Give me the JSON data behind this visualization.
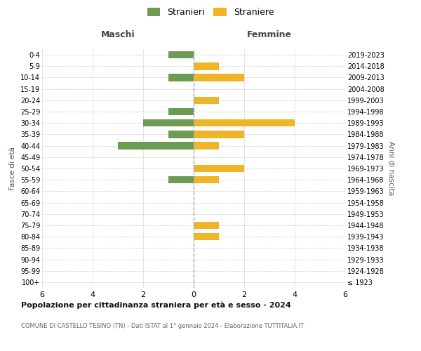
{
  "age_groups": [
    "100+",
    "95-99",
    "90-94",
    "85-89",
    "80-84",
    "75-79",
    "70-74",
    "65-69",
    "60-64",
    "55-59",
    "50-54",
    "45-49",
    "40-44",
    "35-39",
    "30-34",
    "25-29",
    "20-24",
    "15-19",
    "10-14",
    "5-9",
    "0-4"
  ],
  "birth_years": [
    "≤ 1923",
    "1924-1928",
    "1929-1933",
    "1934-1938",
    "1939-1943",
    "1944-1948",
    "1949-1953",
    "1954-1958",
    "1959-1963",
    "1964-1968",
    "1969-1973",
    "1974-1978",
    "1979-1983",
    "1984-1988",
    "1989-1993",
    "1994-1998",
    "1999-2003",
    "2004-2008",
    "2009-2013",
    "2014-2018",
    "2019-2023"
  ],
  "maschi": [
    0,
    0,
    0,
    0,
    0,
    0,
    0,
    0,
    0,
    1,
    0,
    0,
    3,
    1,
    2,
    1,
    0,
    0,
    1,
    0,
    1
  ],
  "femmine": [
    0,
    0,
    0,
    0,
    1,
    1,
    0,
    0,
    0,
    1,
    2,
    0,
    1,
    2,
    4,
    0,
    1,
    0,
    2,
    1,
    0
  ],
  "color_maschi": "#6e9b52",
  "color_femmine": "#f0b429",
  "xlim": 6,
  "title1": "Popolazione per cittadinanza straniera per età e sesso - 2024",
  "title2": "COMUNE DI CASTELLO TESINO (TN) - Dati ISTAT al 1° gennaio 2024 - Elaborazione TUTTITALIA.IT",
  "label_maschi": "Stranieri",
  "label_femmine": "Straniere",
  "xlabel_left": "Maschi",
  "xlabel_right": "Femmine",
  "ylabel_left": "Fasce di età",
  "ylabel_right": "Anni di nascita",
  "background_color": "#ffffff",
  "grid_color": "#cccccc"
}
